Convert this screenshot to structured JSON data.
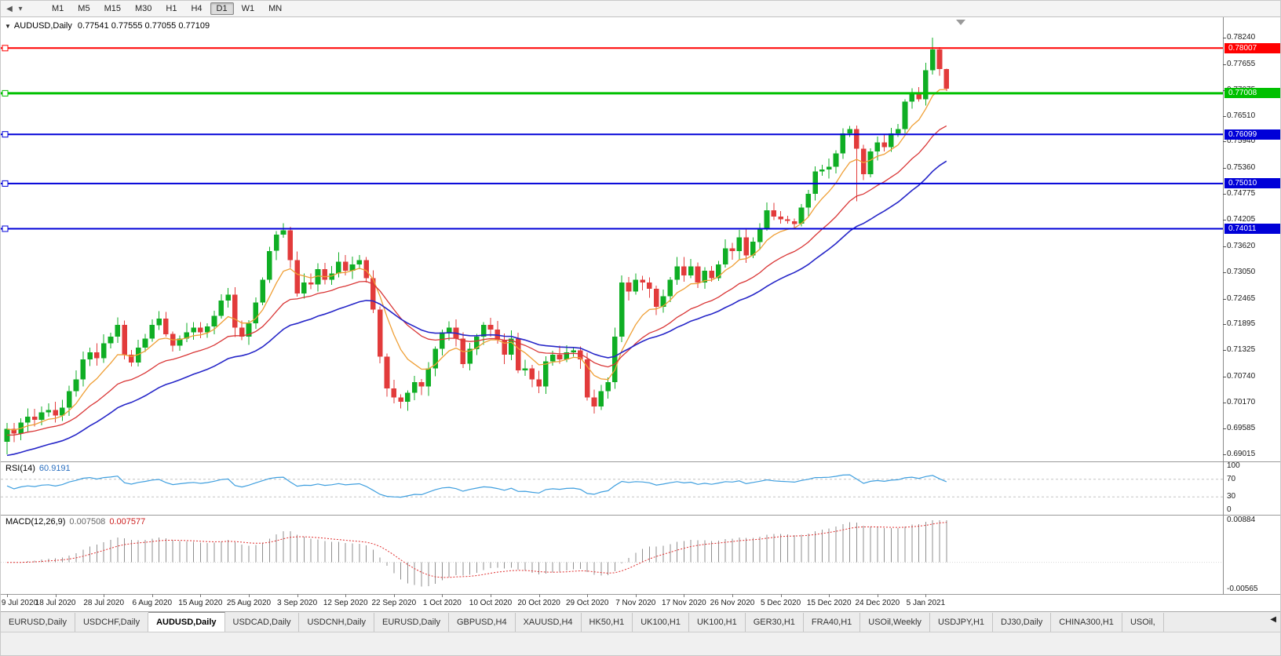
{
  "toolbar": {
    "timeframes": [
      "M1",
      "M5",
      "M15",
      "M30",
      "H1",
      "H4",
      "D1",
      "W1",
      "MN"
    ],
    "active_timeframe": "D1"
  },
  "chart_header": {
    "symbol": "AUDUSD,Daily",
    "ohlc": "0.77541 0.77555 0.77055 0.77109"
  },
  "price_axis": {
    "ticks": [
      "0.78240",
      "0.77655",
      "0.77075",
      "0.76510",
      "0.75940",
      "0.75360",
      "0.74775",
      "0.74205",
      "0.73620",
      "0.73050",
      "0.72465",
      "0.71895",
      "0.71325",
      "0.70740",
      "0.70170",
      "0.69585",
      "0.69015"
    ]
  },
  "chart_data": {
    "type": "candlestick",
    "symbol": "AUDUSD",
    "timeframe": "Daily",
    "current_ohlc": {
      "open": 0.77541,
      "high": 0.77555,
      "low": 0.77055,
      "close": 0.77109
    },
    "y_range": [
      0.6888,
      0.7869
    ],
    "x_label_step": 7,
    "x_labels": [
      "9 Jul 2020",
      "18 Jul 2020",
      "28 Jul 2020",
      "6 Aug 2020",
      "15 Aug 2020",
      "25 Aug 2020",
      "3 Sep 2020",
      "12 Sep 2020",
      "22 Sep 2020",
      "1 Oct 2020",
      "10 Oct 2020",
      "20 Oct 2020",
      "29 Oct 2020",
      "7 Nov 2020",
      "17 Nov 2020",
      "26 Nov 2020",
      "5 Dec 2020",
      "15 Dec 2020",
      "24 Dec 2020",
      "5 Jan 2021"
    ],
    "closes": [
      0.6958,
      0.6948,
      0.6972,
      0.6985,
      0.6978,
      0.6995,
      0.7,
      0.6988,
      0.7005,
      0.7042,
      0.7068,
      0.7112,
      0.7128,
      0.7115,
      0.7148,
      0.7162,
      0.7188,
      0.7122,
      0.7105,
      0.7138,
      0.7158,
      0.7188,
      0.7202,
      0.7168,
      0.7142,
      0.7158,
      0.7172,
      0.7182,
      0.7172,
      0.7185,
      0.7208,
      0.7242,
      0.7255,
      0.7182,
      0.7162,
      0.7192,
      0.7238,
      0.7288,
      0.7352,
      0.7388,
      0.7398,
      0.7332,
      0.7258,
      0.7282,
      0.7278,
      0.7312,
      0.7288,
      0.7302,
      0.7328,
      0.7308,
      0.7322,
      0.7332,
      0.7292,
      0.7222,
      0.7118,
      0.7048,
      0.7028,
      0.7018,
      0.7038,
      0.7062,
      0.7052,
      0.7092,
      0.7135,
      0.7172,
      0.7182,
      0.7158,
      0.7102,
      0.7135,
      0.7162,
      0.7188,
      0.7178,
      0.7155,
      0.7122,
      0.7158,
      0.7088,
      0.7092,
      0.7068,
      0.7052,
      0.7108,
      0.7122,
      0.7112,
      0.7128,
      0.7132,
      0.7112,
      0.7028,
      0.7008,
      0.7042,
      0.7062,
      0.7162,
      0.7282,
      0.7262,
      0.7288,
      0.7282,
      0.7268,
      0.7228,
      0.7252,
      0.7288,
      0.7318,
      0.7298,
      0.7318,
      0.7282,
      0.7308,
      0.7292,
      0.7322,
      0.7358,
      0.7352,
      0.7382,
      0.7342,
      0.7372,
      0.7402,
      0.7442,
      0.7428,
      0.7422,
      0.7418,
      0.7412,
      0.7448,
      0.7478,
      0.7528,
      0.7532,
      0.7538,
      0.7568,
      0.7612,
      0.7622,
      0.7578,
      0.7522,
      0.7572,
      0.7592,
      0.7582,
      0.7612,
      0.7622,
      0.7682,
      0.7702,
      0.7688,
      0.7752,
      0.7798,
      0.77541,
      0.77109
    ],
    "candle_overrides": {
      "0": {
        "open": 0.693,
        "low": 0.6902
      },
      "40": {
        "high": 0.7413
      },
      "85": {
        "low": 0.6992
      },
      "123": {
        "low": 0.7462
      },
      "134": {
        "high": 0.7824
      },
      "136": {
        "open": 0.77541,
        "high": 0.77555,
        "low": 0.77055
      }
    },
    "horizontal_lines": [
      {
        "price": 0.78007,
        "label": "0.78007",
        "color": "#ff0000",
        "width": 2
      },
      {
        "price": 0.77008,
        "label": "0.77008",
        "color": "#00c000",
        "width": 3
      },
      {
        "price": 0.76099,
        "label": "0.76099",
        "color": "#0000d8",
        "width": 2
      },
      {
        "price": 0.7501,
        "label": "0.75010",
        "color": "#0000d8",
        "width": 2
      },
      {
        "price": 0.74011,
        "label": "0.74011",
        "color": "#0000d8",
        "width": 2
      }
    ],
    "moving_averages": [
      {
        "name": "fast",
        "period": 8,
        "color": "#ef9f35"
      },
      {
        "name": "mid",
        "period": 20,
        "color": "#d93636"
      },
      {
        "name": "slow",
        "period": 34,
        "color": "#2626c8"
      }
    ],
    "candle_colors": {
      "bull": "#0fae24",
      "bear": "#e23b3b"
    },
    "indicators": {
      "rsi": {
        "label": "RSI(14)",
        "value": "60.9191",
        "period": 14,
        "levels": [
          70,
          30
        ],
        "ticks": [
          "100",
          "70",
          "30",
          "0"
        ],
        "color": "#3f9fdf"
      },
      "macd": {
        "label": "MACD(12,26,9)",
        "value_main": "0.007508",
        "value_signal": "0.007577",
        "fast": 12,
        "slow": 26,
        "signal": 9,
        "ticks": [
          "0.00884",
          "-0.00565"
        ],
        "hist_color": "#8f8f8f",
        "signal_color": "#e03030"
      }
    }
  },
  "window_tabs": {
    "items": [
      {
        "label": "EURUSD,Daily",
        "active": false
      },
      {
        "label": "USDCHF,Daily",
        "active": false
      },
      {
        "label": "AUDUSD,Daily",
        "active": true
      },
      {
        "label": "USDCAD,Daily",
        "active": false
      },
      {
        "label": "USDCNH,Daily",
        "active": false
      },
      {
        "label": "EURUSD,Daily",
        "active": false
      },
      {
        "label": "GBPUSD,H4",
        "active": false
      },
      {
        "label": "XAUUSD,H4",
        "active": false
      },
      {
        "label": "HK50,H1",
        "active": false
      },
      {
        "label": "UK100,H1",
        "active": false
      },
      {
        "label": "UK100,H1",
        "active": false
      },
      {
        "label": "GER30,H1",
        "active": false
      },
      {
        "label": "FRA40,H1",
        "active": false
      },
      {
        "label": "USOil,Weekly",
        "active": false
      },
      {
        "label": "USDJPY,H1",
        "active": false
      },
      {
        "label": "DJ30,Daily",
        "active": false
      },
      {
        "label": "CHINA300,H1",
        "active": false
      },
      {
        "label": "USOil,",
        "active": false
      }
    ],
    "scroll_icon": "left-arrow"
  }
}
